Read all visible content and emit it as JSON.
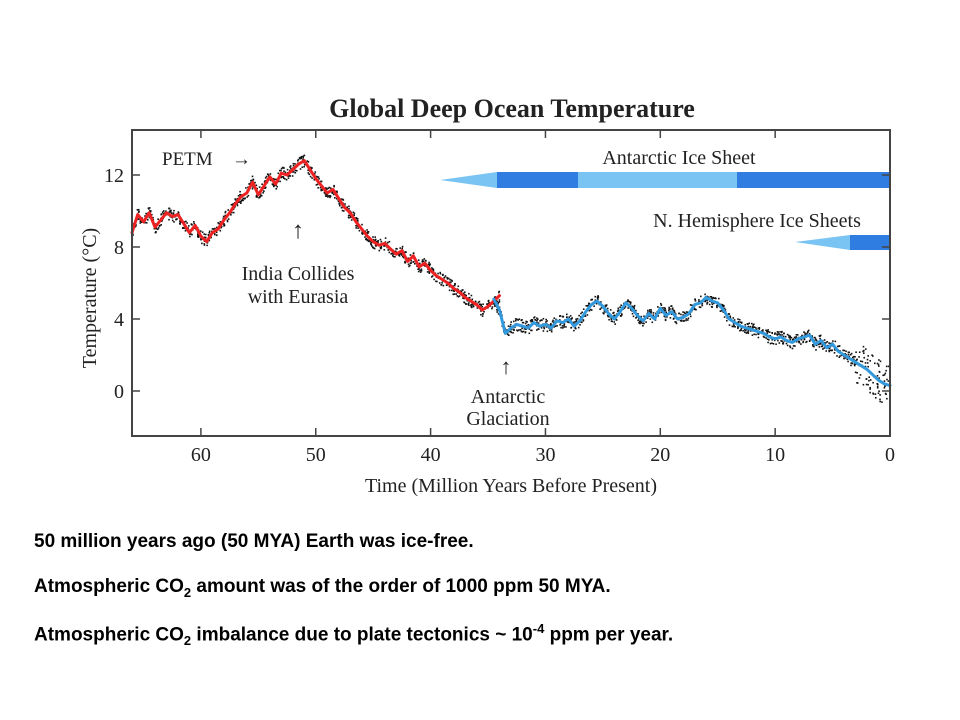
{
  "chart_data": {
    "type": "line",
    "title": "Global Deep Ocean Temperature",
    "xlabel": "Time (Million Years Before Present)",
    "ylabel": "Temperature (°C)",
    "xlim": [
      66,
      0
    ],
    "ylim": [
      -2.5,
      14.5
    ],
    "x_ticks": [
      60,
      50,
      40,
      30,
      20,
      10,
      0
    ],
    "y_ticks": [
      0,
      4,
      8,
      12
    ],
    "grid": false,
    "series": [
      {
        "color": "#ee2222",
        "x": [
          66,
          65.5,
          65,
          64.5,
          64,
          63.5,
          63,
          62.5,
          62,
          61.5,
          61,
          60.5,
          60,
          59.5,
          59,
          58.5,
          58,
          57.5,
          57,
          56.5,
          56,
          55.5,
          55,
          54.5,
          54,
          53.5,
          53,
          52.5,
          52,
          51.5,
          51,
          50.5,
          50,
          49.5,
          49,
          48.5,
          48,
          47.5,
          47,
          46.5,
          46,
          45.5,
          45,
          44.5,
          44,
          43.5,
          43,
          42.5,
          42,
          41.5,
          41,
          40.5,
          40,
          39.5,
          39,
          38.5,
          38,
          37.5,
          37,
          36.5,
          36,
          35.5,
          35,
          34.5,
          34
        ],
        "y": [
          8.8,
          9.8,
          9.4,
          9.9,
          9.1,
          9.5,
          9.9,
          9.7,
          9.8,
          9.3,
          8.8,
          9.2,
          8.6,
          8.3,
          8.8,
          9.0,
          9.5,
          9.9,
          10.4,
          10.8,
          11.0,
          11.6,
          10.9,
          11.4,
          11.9,
          11.5,
          12.1,
          12.0,
          12.3,
          12.6,
          12.8,
          12.3,
          11.8,
          11.4,
          11.0,
          11.2,
          10.7,
          10.2,
          9.9,
          9.4,
          9.0,
          8.6,
          8.3,
          8.1,
          8.2,
          7.9,
          7.6,
          7.8,
          7.2,
          7.5,
          6.9,
          7.1,
          6.7,
          6.4,
          6.2,
          6.0,
          5.7,
          5.5,
          5.2,
          5.0,
          4.8,
          4.5,
          4.7,
          5.0,
          5.3
        ]
      },
      {
        "color": "#3399dd",
        "x": [
          34.5,
          34,
          33.5,
          33,
          32.5,
          32,
          31.5,
          31,
          30.5,
          30,
          29.5,
          29,
          28.5,
          28,
          27.5,
          27,
          26.5,
          26,
          25.5,
          25,
          24.5,
          24,
          23.5,
          23,
          22.5,
          22,
          21.5,
          21,
          20.5,
          20,
          19.5,
          19,
          18.5,
          18,
          17.5,
          17,
          16.5,
          16,
          15.5,
          15,
          14.5,
          14,
          13.5,
          13,
          12.5,
          12,
          11.5,
          11,
          10.5,
          10,
          9.5,
          9,
          8.5,
          8,
          7.5,
          7,
          6.5,
          6,
          5.5,
          5,
          4.5,
          4,
          3.5,
          3,
          2.5,
          2,
          1.5,
          1,
          0.5,
          0
        ],
        "y": [
          5.1,
          4.5,
          3.2,
          3.5,
          3.7,
          3.6,
          3.5,
          3.8,
          3.6,
          3.7,
          3.5,
          3.9,
          3.8,
          4.0,
          3.6,
          3.9,
          4.4,
          4.8,
          5.0,
          4.7,
          4.3,
          4.0,
          4.4,
          4.9,
          4.6,
          4.2,
          3.9,
          4.3,
          4.0,
          4.6,
          4.2,
          4.4,
          4.0,
          4.1,
          4.3,
          4.8,
          4.9,
          5.2,
          5.0,
          4.9,
          4.5,
          4.0,
          3.8,
          3.6,
          3.5,
          3.4,
          3.3,
          3.2,
          3.0,
          2.9,
          3.0,
          2.8,
          2.7,
          2.9,
          3.0,
          3.1,
          2.6,
          2.8,
          2.4,
          2.6,
          2.2,
          2.0,
          1.8,
          1.6,
          1.4,
          1.2,
          0.9,
          0.6,
          0.4,
          0.3
        ]
      }
    ],
    "annotations": {
      "petm": "PETM",
      "petm_arrow": "→",
      "up_arrow": "↑",
      "india_line1": "India Collides",
      "india_line2": "with Eurasia",
      "antarctic_line1": "Antarctic",
      "antarctic_line2": "Glaciation",
      "antarctic_ice_sheet": "Antarctic Ice Sheet",
      "nh_ice_sheets": "N. Hemisphere Ice Sheets"
    },
    "ice_bars": {
      "light_color": "#7ac4f4",
      "dark_color": "#2f7de0"
    }
  },
  "captions": {
    "line1": "50 million years ago (50 MYA) Earth was ice-free.",
    "line2_a": "Atmospheric CO",
    "line2_sub": "2",
    "line2_b": " amount was of the order of 1000 ppm 50 MYA.",
    "line3_a": "Atmospheric CO",
    "line3_sub": "2",
    "line3_b": " imbalance due to plate tectonics ~ 10",
    "line3_sup": "-4",
    "line3_c": " ppm per year."
  }
}
